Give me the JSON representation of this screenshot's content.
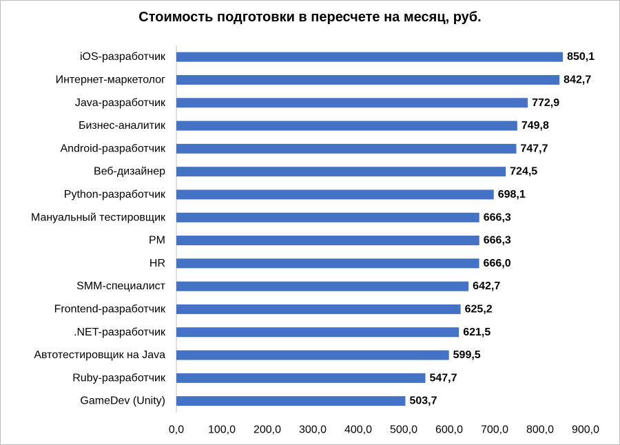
{
  "chart_data": {
    "type": "bar",
    "orientation": "horizontal",
    "title": "Стоимость подготовки в пересчете на месяц, руб.",
    "categories": [
      "iOS-разработчик",
      "Интернет-маркетолог",
      "Java-разработчик",
      "Бизнес-аналитик",
      "Android-разработчик",
      "Веб-дизайнер",
      "Python-разработчик",
      "Мануальный тестировщик ",
      "PM",
      "HR",
      "SMM-специалист",
      "Frontend-разработчик",
      ".NET-разработчик",
      "Автотестировщик на Java",
      "Ruby-разработчик",
      "GameDev (Unity)"
    ],
    "values": [
      850.1,
      842.7,
      772.9,
      749.8,
      747.7,
      724.5,
      698.1,
      666.3,
      666.3,
      666.0,
      642.7,
      625.2,
      621.5,
      599.5,
      547.7,
      503.7
    ],
    "value_labels": [
      "850,1",
      "842,7",
      "772,9",
      "749,8",
      "747,7",
      "724,5",
      "698,1",
      "666,3",
      "666,3",
      "666,0",
      "642,7",
      "625,2",
      "621,5",
      "599,5",
      "547,7",
      "503,7"
    ],
    "xlim": [
      0,
      900
    ],
    "x_ticks": [
      0,
      100,
      200,
      300,
      400,
      500,
      600,
      700,
      800,
      900
    ],
    "x_tick_labels": [
      "0,0",
      "100,0",
      "200,0",
      "300,0",
      "400,0",
      "500,0",
      "600,0",
      "700,0",
      "800,0",
      "900,0"
    ],
    "xlabel": "",
    "ylabel": "",
    "grid": false,
    "legend": "none",
    "colors": {
      "bar": "#4472C4",
      "axis": "#bfbfbf",
      "text": "#000000"
    }
  }
}
